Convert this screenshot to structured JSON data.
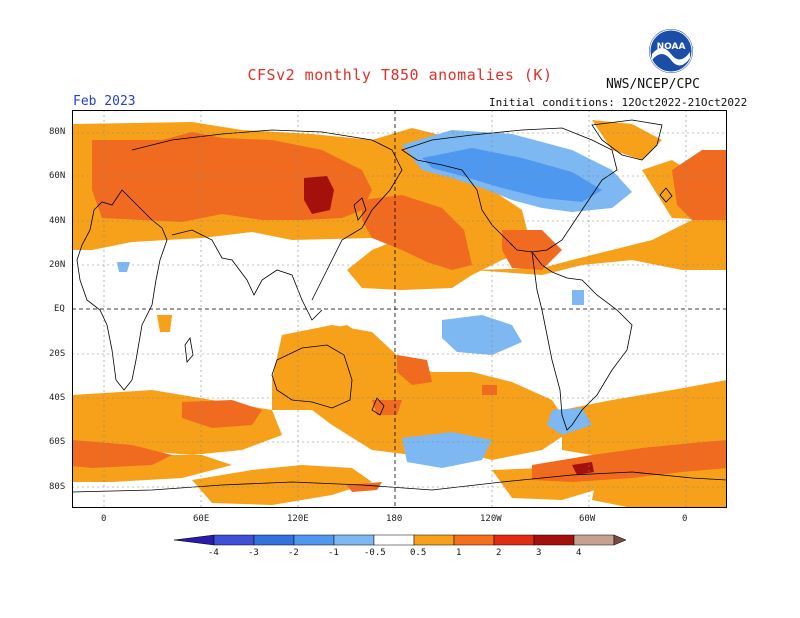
{
  "header": {
    "title": "CFSv2 monthly T850 anomalies (K)",
    "org": "NWS/NCEP/CPC",
    "month": "Feb 2023",
    "init_conditions": "Initial conditions: 12Oct2022-21Oct2022",
    "logo_icon": "noaa-logo-icon",
    "logo_text": "NOAA"
  },
  "axes": {
    "lat_labels": [
      "80N",
      "60N",
      "40N",
      "20N",
      "EQ",
      "20S",
      "40S",
      "60S",
      "80S"
    ],
    "lon_labels": [
      "0",
      "60E",
      "120E",
      "180",
      "120W",
      "60W",
      "0"
    ]
  },
  "colorbar": {
    "ticks": [
      "-4",
      "-3",
      "-2",
      "-1",
      "-0.5",
      "0.5",
      "1",
      "2",
      "3",
      "4"
    ],
    "colors": [
      "#2a1ca8",
      "#3f4fd6",
      "#2f72e0",
      "#4f98ef",
      "#7db8f3",
      "#ffffff",
      "#f7a11a",
      "#f5701a",
      "#e02c10",
      "#a4100b",
      "#c8a090",
      "#7a4a40"
    ]
  },
  "colors": {
    "anomaly_0_5_1": "#f7a11a",
    "anomaly_1_2": "#f06a20",
    "anomaly_2_3": "#e0401a",
    "anomaly_3_4": "#a4100b",
    "neg_0_5_1": "#7db8f3",
    "neg_1_2": "#4f98ef",
    "neg_2_3": "#2f72e0"
  }
}
